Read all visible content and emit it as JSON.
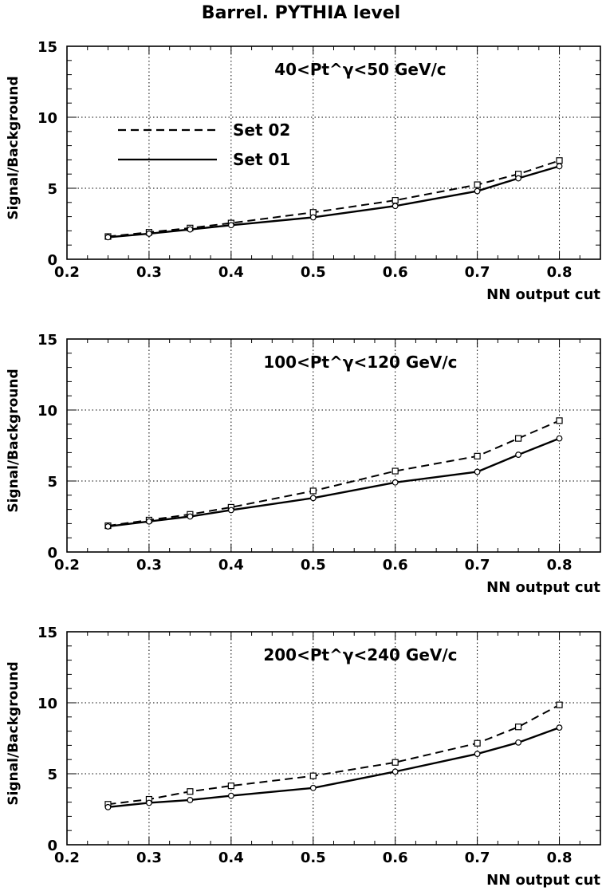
{
  "page": {
    "title": "Barrel. PYTHIA level"
  },
  "colors": {
    "line": "#000000",
    "grid": "#000000",
    "background": "#ffffff"
  },
  "chart_data": [
    {
      "type": "line",
      "annotation": "40<Pt^γ<50 GeV/c",
      "xlabel": "NN output cut",
      "ylabel": "Signal/Background",
      "xlim": [
        0.2,
        0.85
      ],
      "ylim": [
        0,
        15
      ],
      "xticks": [
        "0.2",
        "0.3",
        "0.4",
        "0.5",
        "0.6",
        "0.7",
        "0.8"
      ],
      "yticks": [
        "0",
        "5",
        "10",
        "15"
      ],
      "grid": true,
      "legend": {
        "placement": "upper-left",
        "entries": [
          "Set 02",
          "Set 01"
        ]
      },
      "x": [
        0.25,
        0.3,
        0.35,
        0.4,
        0.5,
        0.6,
        0.7,
        0.75,
        0.8
      ],
      "series": [
        {
          "name": "Set 02",
          "style": "dashed",
          "marker": "square",
          "values": [
            1.6,
            1.9,
            2.2,
            2.55,
            3.3,
            4.15,
            5.25,
            6.0,
            6.95
          ]
        },
        {
          "name": "Set 01",
          "style": "solid",
          "marker": "circle",
          "values": [
            1.55,
            1.8,
            2.1,
            2.4,
            2.95,
            3.75,
            4.8,
            5.7,
            6.55
          ]
        }
      ]
    },
    {
      "type": "line",
      "annotation": "100<Pt^γ<120 GeV/c",
      "xlabel": "NN output cut",
      "ylabel": "Signal/Background",
      "xlim": [
        0.2,
        0.85
      ],
      "ylim": [
        0,
        15
      ],
      "xticks": [
        "0.2",
        "0.3",
        "0.4",
        "0.5",
        "0.6",
        "0.7",
        "0.8"
      ],
      "yticks": [
        "0",
        "5",
        "10",
        "15"
      ],
      "grid": true,
      "x": [
        0.25,
        0.3,
        0.35,
        0.4,
        0.5,
        0.6,
        0.7,
        0.75,
        0.8
      ],
      "series": [
        {
          "name": "Set 02",
          "style": "dashed",
          "marker": "square",
          "values": [
            1.85,
            2.25,
            2.65,
            3.15,
            4.3,
            5.7,
            6.75,
            8.0,
            9.25
          ]
        },
        {
          "name": "Set 01",
          "style": "solid",
          "marker": "circle",
          "values": [
            1.8,
            2.15,
            2.5,
            2.95,
            3.8,
            4.9,
            5.65,
            6.85,
            8.0
          ]
        }
      ]
    },
    {
      "type": "line",
      "annotation": "200<Pt^γ<240 GeV/c",
      "xlabel": "NN output cut",
      "ylabel": "Signal/Background",
      "xlim": [
        0.2,
        0.85
      ],
      "ylim": [
        0,
        15
      ],
      "xticks": [
        "0.2",
        "0.3",
        "0.4",
        "0.5",
        "0.6",
        "0.7",
        "0.8"
      ],
      "yticks": [
        "0",
        "5",
        "10",
        "15"
      ],
      "grid": true,
      "x": [
        0.25,
        0.3,
        0.35,
        0.4,
        0.5,
        0.6,
        0.7,
        0.75,
        0.8
      ],
      "series": [
        {
          "name": "Set 02",
          "style": "dashed",
          "marker": "square",
          "values": [
            2.85,
            3.2,
            3.75,
            4.15,
            4.85,
            5.8,
            7.15,
            8.3,
            9.85
          ]
        },
        {
          "name": "Set 01",
          "style": "solid",
          "marker": "circle",
          "values": [
            2.65,
            2.95,
            3.15,
            3.45,
            4.0,
            5.15,
            6.4,
            7.2,
            8.25
          ]
        }
      ]
    }
  ]
}
